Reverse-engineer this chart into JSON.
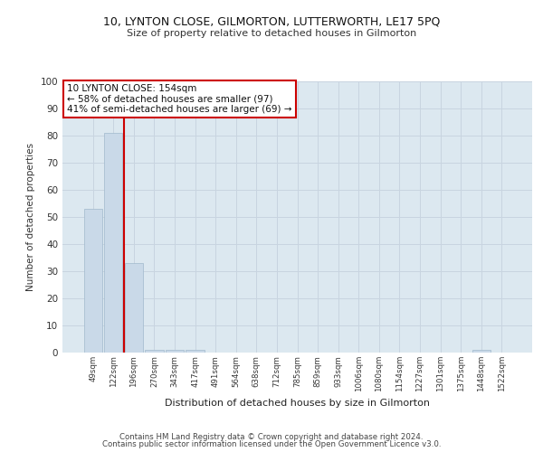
{
  "title1": "10, LYNTON CLOSE, GILMORTON, LUTTERWORTH, LE17 5PQ",
  "title2": "Size of property relative to detached houses in Gilmorton",
  "xlabel": "Distribution of detached houses by size in Gilmorton",
  "ylabel": "Number of detached properties",
  "categories": [
    "49sqm",
    "122sqm",
    "196sqm",
    "270sqm",
    "343sqm",
    "417sqm",
    "491sqm",
    "564sqm",
    "638sqm",
    "712sqm",
    "785sqm",
    "859sqm",
    "933sqm",
    "1006sqm",
    "1080sqm",
    "1154sqm",
    "1227sqm",
    "1301sqm",
    "1375sqm",
    "1448sqm",
    "1522sqm"
  ],
  "values": [
    53,
    81,
    33,
    1,
    1,
    1,
    0,
    0,
    0,
    0,
    0,
    0,
    0,
    0,
    0,
    0,
    0,
    0,
    0,
    1,
    0
  ],
  "bar_color": "#c9d9e8",
  "bar_edge_color": "#a0b8cc",
  "annotation_line1": "10 LYNTON CLOSE: 154sqm",
  "annotation_line2": "← 58% of detached houses are smaller (97)",
  "annotation_line3": "41% of semi-detached houses are larger (69) →",
  "annotation_box_facecolor": "#ffffff",
  "annotation_box_edgecolor": "#cc0000",
  "vline_color": "#cc0000",
  "grid_color": "#c8d4e0",
  "background_color": "#dce8f0",
  "footer1": "Contains HM Land Registry data © Crown copyright and database right 2024.",
  "footer2": "Contains public sector information licensed under the Open Government Licence v3.0.",
  "ylim": [
    0,
    100
  ],
  "yticks": [
    0,
    10,
    20,
    30,
    40,
    50,
    60,
    70,
    80,
    90,
    100
  ]
}
